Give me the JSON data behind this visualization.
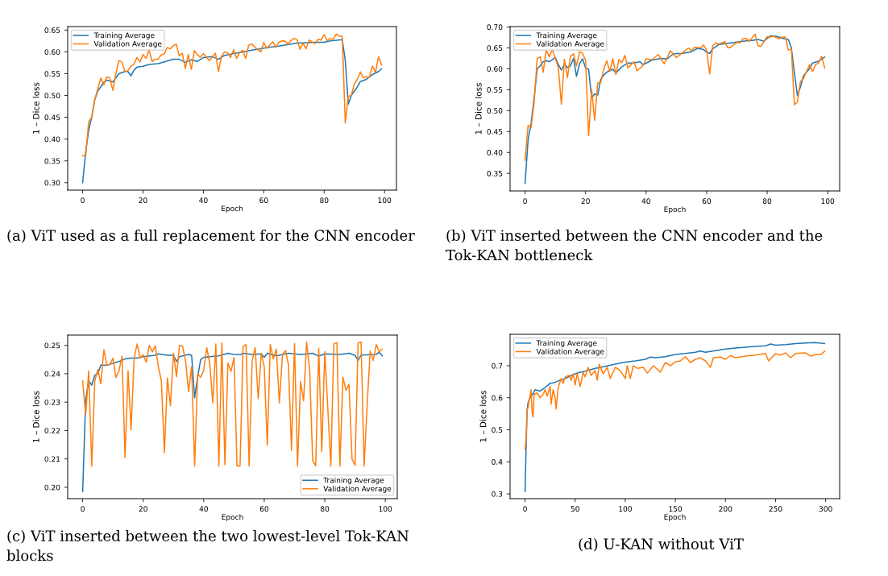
{
  "chart_data": [
    {
      "type": "line",
      "xlabel": "Epoch",
      "ylabel": "1 – Dice loss",
      "xlim": [
        -4.95,
        103.95
      ],
      "ylim": [
        0.283,
        0.658
      ],
      "xticks": [
        0,
        20,
        40,
        60,
        80,
        100
      ],
      "yticks": [
        {
          "value": 0.3,
          "label": "0.30"
        },
        {
          "value": 0.35,
          "label": "0.35"
        },
        {
          "value": 0.4,
          "label": "0.40"
        },
        {
          "value": 0.45,
          "label": "0.45"
        },
        {
          "value": 0.5,
          "label": "0.50"
        },
        {
          "value": 0.55,
          "label": "0.55"
        },
        {
          "value": 0.6,
          "label": "0.60"
        },
        {
          "value": 0.65,
          "label": "0.65"
        }
      ],
      "legend": "top left",
      "grid": false,
      "annotations": [
        "(a) ViT used as a full replacement for the CNN encoder"
      ],
      "series": [
        {
          "name": "Training Average",
          "color": "#1f77b4",
          "x": [
            0,
            1,
            2,
            3,
            4,
            5,
            6,
            7,
            8,
            10,
            12,
            14,
            15,
            16,
            17,
            18,
            20,
            22,
            25,
            28,
            30,
            32,
            34,
            36,
            38,
            40,
            43,
            45,
            47,
            50,
            53,
            56,
            59,
            62,
            65,
            68,
            71,
            74,
            77,
            80,
            82,
            86,
            87,
            88,
            89,
            91,
            92,
            94,
            96,
            98,
            99
          ],
          "values": [
            0.3,
            0.37,
            0.42,
            0.45,
            0.49,
            0.51,
            0.52,
            0.53,
            0.535,
            0.531,
            0.55,
            0.555,
            0.555,
            0.545,
            0.558,
            0.565,
            0.567,
            0.571,
            0.573,
            0.579,
            0.583,
            0.583,
            0.576,
            0.582,
            0.578,
            0.587,
            0.589,
            0.583,
            0.592,
            0.596,
            0.6,
            0.604,
            0.607,
            0.611,
            0.613,
            0.617,
            0.62,
            0.621,
            0.622,
            0.622,
            0.625,
            0.628,
            0.58,
            0.48,
            0.5,
            0.52,
            0.532,
            0.537,
            0.548,
            0.555,
            0.561
          ]
        },
        {
          "name": "Validation Average",
          "color": "#ff7f0e",
          "x": [
            0,
            1,
            2,
            3,
            4,
            5,
            6,
            7,
            8,
            9,
            10,
            11,
            12,
            13,
            14,
            15,
            16,
            17,
            18,
            19,
            20,
            21,
            22,
            23,
            24,
            25,
            26,
            27,
            28,
            29,
            30,
            31,
            32,
            33,
            34,
            35,
            36,
            37,
            38,
            39,
            40,
            42,
            44,
            45,
            46,
            47,
            48,
            49,
            50,
            51,
            52,
            53,
            54,
            55,
            56,
            58,
            59,
            60,
            61,
            62,
            63,
            64,
            65,
            66,
            67,
            68,
            69,
            70,
            71,
            72,
            73,
            74,
            75,
            77,
            78,
            79,
            80,
            81,
            82,
            83,
            84,
            85,
            86,
            87,
            88,
            89,
            90,
            91,
            92,
            93,
            94,
            95,
            96,
            97,
            98,
            99
          ],
          "values": [
            0.362,
            0.361,
            0.44,
            0.45,
            0.49,
            0.515,
            0.54,
            0.524,
            0.543,
            0.54,
            0.512,
            0.55,
            0.58,
            0.577,
            0.555,
            0.557,
            0.567,
            0.572,
            0.587,
            0.577,
            0.594,
            0.585,
            0.605,
            0.578,
            0.583,
            0.583,
            0.593,
            0.595,
            0.61,
            0.607,
            0.614,
            0.618,
            0.591,
            0.597,
            0.562,
            0.594,
            0.56,
            0.603,
            0.593,
            0.588,
            0.596,
            0.58,
            0.597,
            0.555,
            0.59,
            0.6,
            0.598,
            0.587,
            0.605,
            0.585,
            0.598,
            0.604,
            0.585,
            0.615,
            0.618,
            0.605,
            0.6,
            0.622,
            0.608,
            0.616,
            0.623,
            0.61,
            0.622,
            0.625,
            0.625,
            0.618,
            0.626,
            0.631,
            0.628,
            0.606,
            0.62,
            0.607,
            0.627,
            0.619,
            0.629,
            0.627,
            0.64,
            0.626,
            0.631,
            0.629,
            0.641,
            0.636,
            0.636,
            0.437,
            0.498,
            0.5,
            0.527,
            0.537,
            0.554,
            0.54,
            0.543,
            0.542,
            0.568,
            0.553,
            0.589,
            0.57
          ]
        }
      ]
    },
    {
      "type": "line",
      "xlabel": "Epoch",
      "ylabel": "1 – Dice loss",
      "xlim": [
        -4.95,
        103.95
      ],
      "ylim": [
        0.308,
        0.701
      ],
      "xticks": [
        0,
        20,
        40,
        60,
        80,
        100
      ],
      "yticks": [
        {
          "value": 0.35,
          "label": "0.35"
        },
        {
          "value": 0.4,
          "label": "0.40"
        },
        {
          "value": 0.45,
          "label": "0.45"
        },
        {
          "value": 0.5,
          "label": "0.50"
        },
        {
          "value": 0.55,
          "label": "0.55"
        },
        {
          "value": 0.6,
          "label": "0.60"
        },
        {
          "value": 0.65,
          "label": "0.65"
        },
        {
          "value": 0.7,
          "label": "0.70"
        }
      ],
      "legend": "top left",
      "grid": false,
      "annotations": [
        "(b) ViT inserted between the CNN encoder and the Tok-KAN bottleneck"
      ],
      "series": [
        {
          "name": "Training Average",
          "color": "#1f77b4",
          "x": [
            0,
            1,
            2,
            3,
            4,
            5,
            6,
            7,
            8,
            9,
            10,
            11,
            12,
            13,
            14,
            15,
            16,
            17,
            18,
            19,
            20,
            21,
            22,
            23,
            24,
            25,
            26,
            27,
            28,
            29,
            30,
            32,
            34,
            36,
            38,
            39,
            42,
            45,
            47,
            49,
            52,
            55,
            57,
            59,
            60,
            61,
            62,
            64,
            67,
            70,
            73,
            75,
            77,
            79,
            81,
            83,
            85,
            87,
            88,
            89,
            90,
            91,
            92,
            94,
            95,
            97,
            99
          ],
          "values": [
            0.326,
            0.43,
            0.47,
            0.53,
            0.6,
            0.607,
            0.617,
            0.619,
            0.617,
            0.622,
            0.627,
            0.61,
            0.597,
            0.611,
            0.603,
            0.607,
            0.625,
            0.582,
            0.612,
            0.624,
            0.602,
            0.599,
            0.53,
            0.54,
            0.537,
            0.575,
            0.585,
            0.592,
            0.596,
            0.599,
            0.59,
            0.605,
            0.614,
            0.614,
            0.617,
            0.61,
            0.621,
            0.625,
            0.624,
            0.636,
            0.637,
            0.641,
            0.649,
            0.646,
            0.64,
            0.637,
            0.648,
            0.658,
            0.661,
            0.664,
            0.667,
            0.668,
            0.67,
            0.666,
            0.679,
            0.678,
            0.673,
            0.67,
            0.65,
            0.59,
            0.536,
            0.557,
            0.583,
            0.601,
            0.614,
            0.618,
            0.628
          ]
        },
        {
          "name": "Validation Average",
          "color": "#ff7f0e",
          "x": [
            0,
            1,
            2,
            3,
            4,
            5,
            6,
            7,
            8,
            9,
            10,
            11,
            12,
            13,
            14,
            15,
            16,
            17,
            18,
            19,
            20,
            21,
            22,
            23,
            24,
            25,
            26,
            27,
            28,
            29,
            30,
            31,
            32,
            33,
            34,
            36,
            37,
            39,
            40,
            42,
            44,
            46,
            48,
            50,
            52,
            54,
            55,
            56,
            58,
            59,
            60,
            61,
            62,
            63,
            64,
            66,
            67,
            68,
            70,
            71,
            72,
            73,
            74,
            75,
            76,
            77,
            78,
            80,
            81,
            82,
            84,
            85,
            86,
            87,
            88,
            89,
            90,
            91,
            92,
            94,
            95,
            96,
            97,
            98,
            99
          ],
          "values": [
            0.381,
            0.465,
            0.46,
            0.52,
            0.624,
            0.629,
            0.592,
            0.645,
            0.629,
            0.646,
            0.625,
            0.602,
            0.515,
            0.623,
            0.579,
            0.63,
            0.636,
            0.607,
            0.641,
            0.637,
            0.62,
            0.44,
            0.55,
            0.477,
            0.566,
            0.567,
            0.6,
            0.619,
            0.594,
            0.624,
            0.586,
            0.622,
            0.615,
            0.632,
            0.602,
            0.617,
            0.595,
            0.608,
            0.624,
            0.622,
            0.634,
            0.612,
            0.643,
            0.627,
            0.638,
            0.65,
            0.643,
            0.652,
            0.65,
            0.657,
            0.645,
            0.588,
            0.655,
            0.662,
            0.659,
            0.665,
            0.65,
            0.652,
            0.663,
            0.662,
            0.672,
            0.673,
            0.666,
            0.674,
            0.683,
            0.655,
            0.654,
            0.677,
            0.676,
            0.678,
            0.672,
            0.676,
            0.676,
            0.645,
            0.647,
            0.514,
            0.521,
            0.57,
            0.577,
            0.61,
            0.593,
            0.61,
            0.614,
            0.63,
            0.602
          ]
        }
      ]
    },
    {
      "type": "line",
      "xlabel": "Epoch",
      "ylabel": "1 – Dice loss",
      "xlim": [
        -4.95,
        103.95
      ],
      "ylim": [
        0.196,
        0.2536
      ],
      "xticks": [
        0,
        20,
        40,
        60,
        80,
        100
      ],
      "yticks": [
        {
          "value": 0.2,
          "label": "0.20"
        },
        {
          "value": 0.21,
          "label": "0.21"
        },
        {
          "value": 0.22,
          "label": "0.22"
        },
        {
          "value": 0.23,
          "label": "0.23"
        },
        {
          "value": 0.24,
          "label": "0.24"
        },
        {
          "value": 0.25,
          "label": "0.25"
        }
      ],
      "legend": "bottom right",
      "grid": false,
      "annotations": [
        "(c) ViT inserted between the two lowest-level Tok-KAN blocks"
      ],
      "series": [
        {
          "name": "Training Average",
          "color": "#1f77b4",
          "x": [
            0,
            1,
            2,
            3,
            4,
            5,
            6,
            8,
            10,
            12,
            14,
            16,
            18,
            20,
            24,
            25,
            28,
            30,
            31,
            32,
            35,
            36,
            37,
            38,
            39,
            40,
            42,
            45,
            48,
            50,
            52,
            53,
            56,
            59,
            60,
            61,
            64,
            68,
            72,
            76,
            78,
            80,
            85,
            88,
            90,
            91,
            92,
            95,
            97,
            98,
            99
          ],
          "values": [
            0.1985,
            0.231,
            0.2375,
            0.236,
            0.2395,
            0.24,
            0.243,
            0.243,
            0.2437,
            0.2443,
            0.2452,
            0.2455,
            0.2455,
            0.246,
            0.2465,
            0.247,
            0.2465,
            0.2465,
            0.2443,
            0.246,
            0.2468,
            0.2465,
            0.2315,
            0.239,
            0.245,
            0.2458,
            0.246,
            0.2463,
            0.2472,
            0.2468,
            0.2467,
            0.2472,
            0.2468,
            0.247,
            0.2458,
            0.2472,
            0.2463,
            0.2472,
            0.2468,
            0.2472,
            0.2462,
            0.247,
            0.2468,
            0.2472,
            0.2465,
            0.2447,
            0.2466,
            0.2467,
            0.2468,
            0.2476,
            0.2463
          ]
        },
        {
          "name": "Validation Average",
          "color": "#ff7f0e",
          "x": [
            0,
            1,
            2,
            3,
            4,
            5,
            6,
            7,
            8,
            9,
            10,
            11,
            12,
            13,
            14,
            15,
            16,
            17,
            18,
            19,
            20,
            21,
            22,
            23,
            24,
            25,
            26,
            27,
            28,
            29,
            30,
            31,
            32,
            33,
            34,
            35,
            36,
            37,
            38,
            39,
            40,
            41,
            42,
            43,
            44,
            45,
            46,
            47,
            48,
            49,
            50,
            51,
            52,
            53,
            54,
            55,
            56,
            57,
            58,
            59,
            60,
            61,
            62,
            63,
            64,
            65,
            66,
            67,
            68,
            69,
            70,
            71,
            72,
            73,
            74,
            75,
            76,
            77,
            78,
            79,
            80,
            81,
            82,
            83,
            84,
            85,
            86,
            87,
            88,
            89,
            90,
            91,
            92,
            93,
            94,
            95,
            96,
            97,
            98,
            99
          ],
          "values": [
            0.2375,
            0.2255,
            0.241,
            0.2075,
            0.2375,
            0.2415,
            0.2365,
            0.2485,
            0.243,
            0.2432,
            0.2455,
            0.2387,
            0.241,
            0.2462,
            0.2105,
            0.241,
            0.2202,
            0.2455,
            0.2505,
            0.2455,
            0.2467,
            0.244,
            0.25,
            0.2477,
            0.2498,
            0.2425,
            0.2375,
            0.2122,
            0.2385,
            0.2287,
            0.2472,
            0.239,
            0.25,
            0.2497,
            0.2445,
            0.2337,
            0.2425,
            0.2075,
            0.2398,
            0.2388,
            0.2412,
            0.2492,
            0.2435,
            0.2297,
            0.2505,
            0.2075,
            0.2508,
            0.208,
            0.2438,
            0.2408,
            0.2457,
            0.2075,
            0.2075,
            0.2495,
            0.2503,
            0.2075,
            0.2445,
            0.2492,
            0.2312,
            0.2472,
            0.2425,
            0.2148,
            0.2503,
            0.2452,
            0.2487,
            0.2297,
            0.2465,
            0.2482,
            0.2432,
            0.213,
            0.2507,
            0.2075,
            0.2372,
            0.2305,
            0.2512,
            0.2412,
            0.2095,
            0.2075,
            0.249,
            0.2125,
            0.2478,
            0.2278,
            0.2075,
            0.2505,
            0.251,
            0.2075,
            0.2388,
            0.2342,
            0.2363,
            0.21,
            0.2077,
            0.2508,
            0.2512,
            0.2075,
            0.229,
            0.248,
            0.2447,
            0.2503,
            0.2477,
            0.2487
          ]
        }
      ]
    },
    {
      "type": "line",
      "xlabel": "Epoch",
      "ylabel": "1 – Dice loss",
      "xlim": [
        -14.95,
        313.95
      ],
      "ylim": [
        0.285,
        0.798
      ],
      "xticks": [
        0,
        50,
        100,
        150,
        200,
        250,
        300
      ],
      "yticks": [
        0.3,
        0.4,
        0.5,
        0.6,
        0.7
      ],
      "legend": "top left",
      "grid": false,
      "annotations": [
        "(d) U-KAN without ViT"
      ],
      "series": [
        {
          "name": "Training Average",
          "color": "#1f77b4",
          "x": [
            0,
            1,
            2,
            3,
            5,
            8,
            10,
            15,
            20,
            25,
            30,
            35,
            40,
            45,
            50,
            55,
            60,
            70,
            80,
            90,
            100,
            110,
            120,
            125,
            130,
            140,
            150,
            160,
            170,
            175,
            180,
            190,
            200,
            210,
            220,
            230,
            240,
            245,
            250,
            260,
            270,
            280,
            290,
            299
          ],
          "values": [
            0.307,
            0.44,
            0.56,
            0.585,
            0.6,
            0.613,
            0.625,
            0.621,
            0.632,
            0.645,
            0.648,
            0.655,
            0.66,
            0.668,
            0.675,
            0.68,
            0.683,
            0.692,
            0.698,
            0.705,
            0.711,
            0.715,
            0.72,
            0.727,
            0.725,
            0.728,
            0.735,
            0.738,
            0.742,
            0.746,
            0.742,
            0.747,
            0.752,
            0.755,
            0.758,
            0.76,
            0.762,
            0.768,
            0.764,
            0.766,
            0.769,
            0.771,
            0.772,
            0.769
          ]
        },
        {
          "name": "Validation Average",
          "color": "#ff7f0e",
          "x": [
            0,
            1,
            2,
            3,
            4,
            6,
            7,
            8,
            9,
            12,
            15,
            18,
            20,
            22,
            25,
            26,
            28,
            30,
            31,
            33,
            36,
            38,
            40,
            44,
            46,
            48,
            50,
            52,
            55,
            58,
            60,
            63,
            66,
            70,
            72,
            74,
            78,
            82,
            85,
            90,
            95,
            100,
            102,
            105,
            108,
            112,
            118,
            122,
            128,
            135,
            140,
            145,
            150,
            155,
            160,
            165,
            170,
            175,
            180,
            185,
            188,
            195,
            200,
            205,
            210,
            220,
            230,
            240,
            243,
            250,
            255,
            260,
            265,
            270,
            280,
            285,
            290,
            295,
            299
          ],
          "values": [
            0.44,
            0.47,
            0.56,
            0.57,
            0.59,
            0.625,
            0.555,
            0.54,
            0.61,
            0.615,
            0.6,
            0.61,
            0.625,
            0.605,
            0.635,
            0.58,
            0.625,
            0.6,
            0.565,
            0.63,
            0.66,
            0.645,
            0.665,
            0.67,
            0.655,
            0.675,
            0.64,
            0.675,
            0.635,
            0.68,
            0.665,
            0.695,
            0.67,
            0.685,
            0.655,
            0.705,
            0.675,
            0.695,
            0.66,
            0.695,
            0.685,
            0.66,
            0.7,
            0.66,
            0.7,
            0.692,
            0.695,
            0.677,
            0.7,
            0.68,
            0.71,
            0.7,
            0.712,
            0.715,
            0.728,
            0.71,
            0.72,
            0.725,
            0.715,
            0.695,
            0.725,
            0.727,
            0.72,
            0.732,
            0.725,
            0.73,
            0.733,
            0.738,
            0.715,
            0.738,
            0.733,
            0.74,
            0.725,
            0.738,
            0.74,
            0.73,
            0.735,
            0.735,
            0.745
          ]
        }
      ]
    }
  ]
}
